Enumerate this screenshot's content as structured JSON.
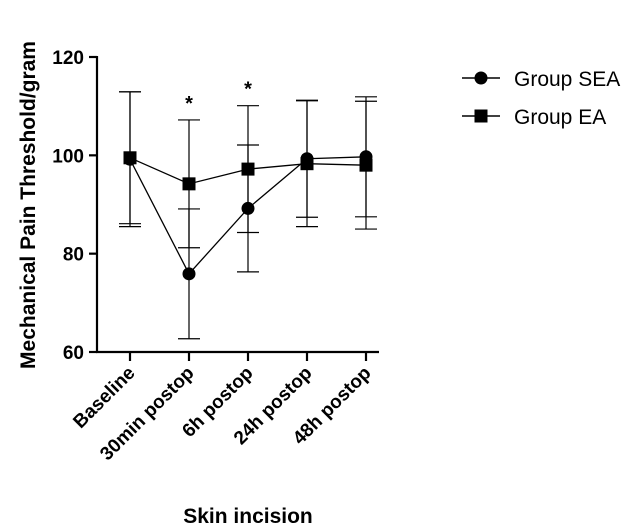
{
  "chart_data": {
    "type": "line",
    "categories": [
      "Baseline",
      "30min postop",
      "6h postop",
      "24h postop",
      "48h postop"
    ],
    "series": [
      {
        "name": "Group SEA",
        "marker": "circle",
        "values": [
          99.2,
          75.9,
          89.2,
          99.3,
          99.7
        ],
        "error": [
          13.7,
          13.2,
          12.9,
          11.9,
          12.2
        ],
        "color": "#000000"
      },
      {
        "name": "Group EA",
        "marker": "square",
        "values": [
          99.5,
          94.2,
          97.2,
          98.3,
          98.0
        ],
        "error": [
          13.4,
          13.0,
          12.9,
          12.8,
          13.0
        ],
        "color": "#000000"
      }
    ],
    "annotations": [
      {
        "category": "30min postop",
        "text": "*"
      },
      {
        "category": "6h postop",
        "text": "*"
      }
    ],
    "ylim": [
      60,
      120
    ],
    "yticks": [
      "60",
      "80",
      "100",
      "120"
    ],
    "ylabel": "Mechanical Pain Threshold/gram",
    "xlabel": "Skin incision",
    "legend_position": "top-right",
    "grid": false
  }
}
